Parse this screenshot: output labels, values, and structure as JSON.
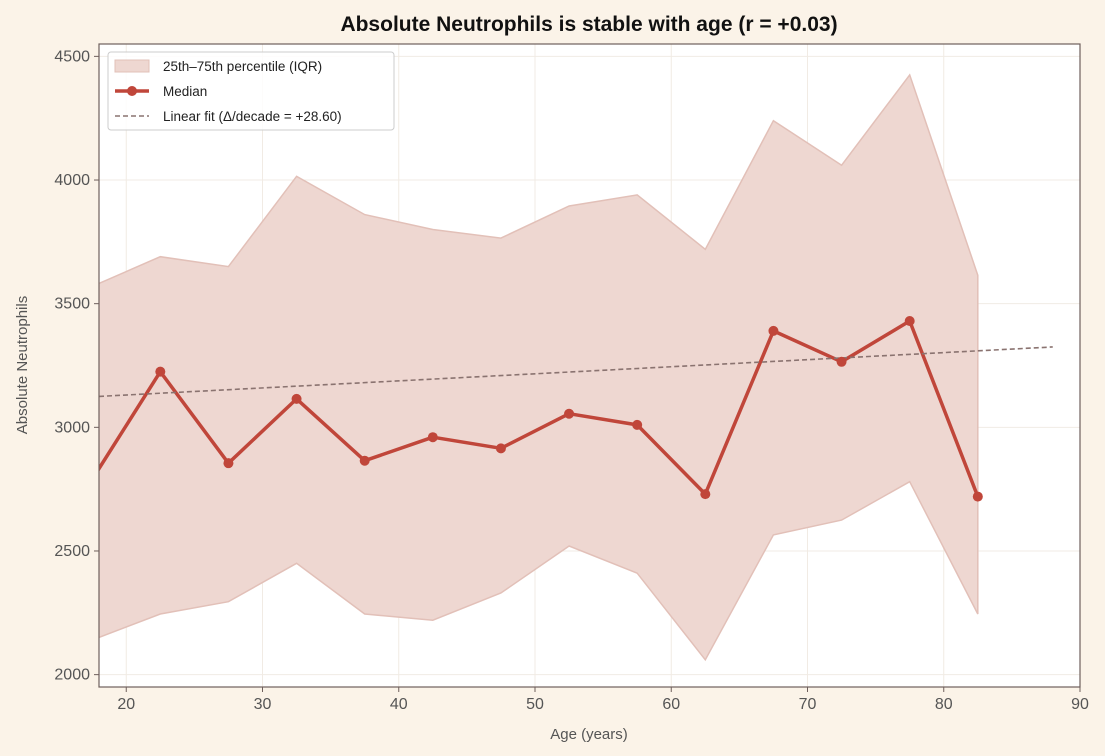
{
  "chart_data": {
    "type": "line",
    "title": "Absolute Neutrophils is stable with age (r = +0.03)",
    "xlabel": "Age (years)",
    "ylabel": "Absolute Neutrophils",
    "xlim": [
      18,
      90
    ],
    "ylim": [
      1950,
      4550
    ],
    "xticks": [
      20,
      30,
      40,
      50,
      60,
      70,
      80,
      90
    ],
    "yticks": [
      2000,
      2500,
      3000,
      3500,
      4000,
      4500
    ],
    "grid": true,
    "legend_position": "top-left",
    "x": [
      17.5,
      22.5,
      27.5,
      32.5,
      37.5,
      42.5,
      47.5,
      52.5,
      57.5,
      62.5,
      67.5,
      72.5,
      77.5,
      82.5
    ],
    "series": [
      {
        "name": "25th–75th percentile (IQR)",
        "kind": "band",
        "lower": [
          2140,
          2245,
          2295,
          2450,
          2245,
          2220,
          2330,
          2520,
          2410,
          2060,
          2565,
          2625,
          2780,
          2245
        ],
        "upper": [
          3570,
          3690,
          3650,
          4015,
          3860,
          3800,
          3765,
          3895,
          3940,
          3720,
          4240,
          4060,
          4425,
          3615
        ],
        "color": "#eed7d1",
        "edge_color": "#e2c0b8"
      },
      {
        "name": "Median",
        "kind": "line",
        "values": [
          2790,
          3225,
          2855,
          3115,
          2865,
          2960,
          2915,
          3055,
          3010,
          2730,
          3390,
          3265,
          3430,
          2720
        ],
        "color": "#c0463a"
      },
      {
        "name": "Linear fit (Δ/decade = +28.60)",
        "kind": "fit",
        "x": [
          18,
          88
        ],
        "values": [
          3125,
          3325
        ],
        "color": "#8a7370"
      }
    ]
  }
}
